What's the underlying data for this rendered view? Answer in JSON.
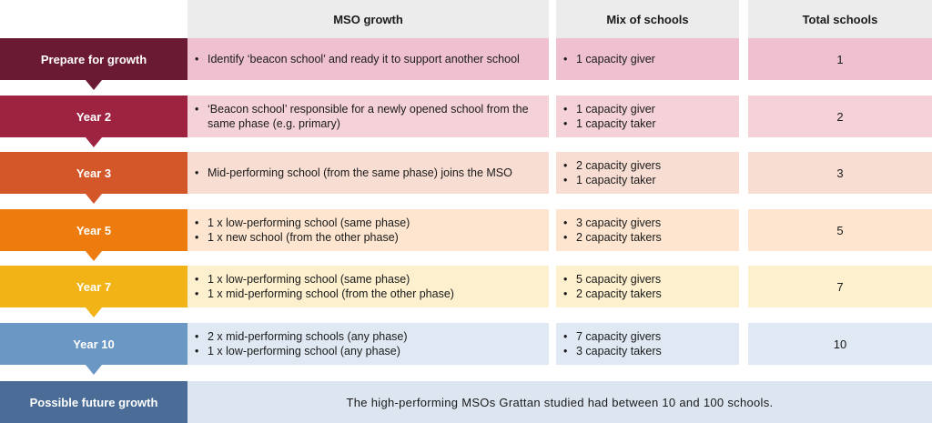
{
  "headers": {
    "growth": "MSO growth",
    "mix": "Mix of schools",
    "total": "Total schools"
  },
  "rows": [
    {
      "label": "Prepare for growth",
      "color": "#6b1a33",
      "fill": "#efc1d0",
      "growth": [
        "Identify ‘beacon school’ and ready it to support another school"
      ],
      "mix": [
        "1 capacity giver"
      ],
      "total": "1"
    },
    {
      "label": "Year 2",
      "color": "#9e2340",
      "fill": "#f4d2d8",
      "growth": [
        "‘Beacon school’ responsible for a newly opened school from the same phase (e.g. primary)"
      ],
      "mix": [
        "1 capacity giver",
        "1 capacity taker"
      ],
      "total": "2"
    },
    {
      "label": "Year 3",
      "color": "#d4572a",
      "fill": "#f8ddd2",
      "growth": [
        "Mid-performing school (from the same phase) joins the MSO"
      ],
      "mix": [
        "2 capacity givers",
        "1 capacity taker"
      ],
      "total": "3"
    },
    {
      "label": "Year 5",
      "color": "#ee7b0d",
      "fill": "#fde5cf",
      "growth": [
        "1 x low-performing school (same phase)",
        "1 x new school (from the other phase)"
      ],
      "mix": [
        "3 capacity givers",
        "2 capacity takers"
      ],
      "total": "5"
    },
    {
      "label": "Year 7",
      "color": "#f2b317",
      "fill": "#fdf0cf",
      "growth": [
        "1 x low-performing school (same phase)",
        "1 x mid-performing school (from the other phase)"
      ],
      "mix": [
        "5 capacity givers",
        "2 capacity takers"
      ],
      "total": "7"
    },
    {
      "label": "Year 10",
      "color": "#6b97c4",
      "fill": "#e0e9f3",
      "growth": [
        "2 x mid-performing schools (any phase)",
        "1 x low-performing school (any phase)"
      ],
      "mix": [
        "7 capacity givers",
        "3 capacity takers"
      ],
      "total": "10"
    }
  ],
  "future": {
    "label": "Possible future growth",
    "text": "The high-performing MSOs Grattan studied had between 10 and 100 schools."
  }
}
